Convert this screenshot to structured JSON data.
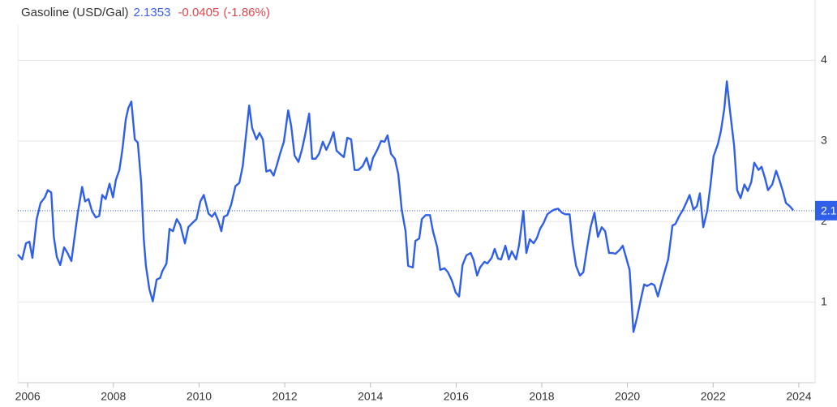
{
  "chart_data": {
    "type": "line",
    "title": "Gasoline (USD/Gal)",
    "last": 2.1353,
    "change": -0.0405,
    "change_percent": "(-1.86%)",
    "color": "#2f5fe8",
    "grid": true,
    "xlim": [
      2005.77,
      2024.38
    ],
    "xticks": [
      2006,
      2008,
      2010,
      2012,
      2014,
      2016,
      2018,
      2020,
      2022,
      2024
    ],
    "ylim": [
      0,
      4.75
    ],
    "yticks": [
      1,
      2,
      3,
      4
    ],
    "x": [
      2005.77,
      2005.87,
      2005.96,
      2006.04,
      2006.11,
      2006.21,
      2006.3,
      2006.4,
      2006.47,
      2006.55,
      2006.61,
      2006.68,
      2006.76,
      2006.85,
      2006.93,
      2007.02,
      2007.1,
      2007.17,
      2007.27,
      2007.34,
      2007.42,
      2007.5,
      2007.59,
      2007.67,
      2007.74,
      2007.82,
      2007.91,
      2007.99,
      2008.06,
      2008.14,
      2008.21,
      2008.29,
      2008.35,
      2008.42,
      2008.5,
      2008.57,
      2008.65,
      2008.71,
      2008.76,
      2008.84,
      2008.92,
      2009.01,
      2009.09,
      2009.14,
      2009.24,
      2009.31,
      2009.39,
      2009.48,
      2009.56,
      2009.67,
      2009.75,
      2009.84,
      2009.94,
      2010.03,
      2010.11,
      2010.22,
      2010.3,
      2010.37,
      2010.45,
      2010.52,
      2010.58,
      2010.66,
      2010.75,
      2010.85,
      2010.94,
      2011.02,
      2011.09,
      2011.17,
      2011.24,
      2011.34,
      2011.41,
      2011.49,
      2011.57,
      2011.66,
      2011.74,
      2011.81,
      2011.89,
      2011.98,
      2012.08,
      2012.15,
      2012.23,
      2012.32,
      2012.4,
      2012.47,
      2012.57,
      2012.64,
      2012.72,
      2012.8,
      2012.89,
      2012.97,
      2013.06,
      2013.14,
      2013.21,
      2013.29,
      2013.38,
      2013.46,
      2013.55,
      2013.63,
      2013.72,
      2013.82,
      2013.91,
      2013.99,
      2014.06,
      2014.16,
      2014.25,
      2014.33,
      2014.4,
      2014.48,
      2014.57,
      2014.65,
      2014.73,
      2014.82,
      2014.88,
      2014.99,
      2015.05,
      2015.14,
      2015.2,
      2015.29,
      2015.39,
      2015.46,
      2015.56,
      2015.63,
      2015.73,
      2015.81,
      2015.9,
      2015.99,
      2016.07,
      2016.15,
      2016.24,
      2016.34,
      2016.41,
      2016.49,
      2016.56,
      2016.66,
      2016.73,
      2016.83,
      2016.9,
      2016.98,
      2017.05,
      2017.15,
      2017.23,
      2017.3,
      2017.4,
      2017.47,
      2017.57,
      2017.64,
      2017.72,
      2017.81,
      2017.89,
      2017.96,
      2018.04,
      2018.13,
      2018.23,
      2018.3,
      2018.38,
      2018.47,
      2018.55,
      2018.65,
      2018.72,
      2018.8,
      2018.89,
      2018.97,
      2019.06,
      2019.14,
      2019.23,
      2019.31,
      2019.4,
      2019.48,
      2019.57,
      2019.65,
      2019.72,
      2019.82,
      2019.89,
      2019.97,
      2020.05,
      2020.14,
      2020.22,
      2020.31,
      2020.39,
      2020.46,
      2020.56,
      2020.63,
      2020.71,
      2020.8,
      2020.88,
      2020.95,
      2021.05,
      2021.12,
      2021.2,
      2021.3,
      2021.37,
      2021.45,
      2021.54,
      2021.62,
      2021.69,
      2021.77,
      2021.86,
      2021.94,
      2022.01,
      2022.11,
      2022.18,
      2022.26,
      2022.32,
      2022.39,
      2022.49,
      2022.56,
      2022.64,
      2022.73,
      2022.81,
      2022.89,
      2022.96,
      2023.06,
      2023.13,
      2023.21,
      2023.28,
      2023.38,
      2023.47,
      2023.55,
      2023.62,
      2023.7,
      2023.79,
      2023.87
    ],
    "values": [
      1.59,
      1.53,
      1.73,
      1.75,
      1.55,
      2.03,
      2.23,
      2.3,
      2.39,
      2.36,
      1.81,
      1.56,
      1.46,
      1.68,
      1.61,
      1.51,
      1.83,
      2.11,
      2.43,
      2.25,
      2.28,
      2.13,
      2.05,
      2.07,
      2.33,
      2.28,
      2.47,
      2.3,
      2.52,
      2.64,
      2.89,
      3.27,
      3.41,
      3.49,
      3.02,
      2.98,
      2.48,
      1.78,
      1.45,
      1.16,
      1.01,
      1.28,
      1.3,
      1.38,
      1.48,
      1.91,
      1.88,
      2.03,
      1.96,
      1.73,
      1.93,
      1.98,
      2.03,
      2.25,
      2.33,
      2.1,
      2.06,
      2.11,
      2.01,
      1.88,
      2.06,
      2.08,
      2.21,
      2.44,
      2.48,
      2.69,
      3.04,
      3.44,
      3.16,
      3.02,
      3.1,
      3.02,
      2.62,
      2.64,
      2.57,
      2.69,
      2.84,
      2.99,
      3.38,
      3.19,
      2.82,
      2.74,
      2.89,
      3.06,
      3.34,
      2.78,
      2.78,
      2.84,
      2.99,
      2.89,
      2.99,
      3.11,
      2.88,
      2.84,
      2.8,
      3.04,
      3.02,
      2.64,
      2.64,
      2.69,
      2.79,
      2.64,
      2.79,
      2.89,
      3.0,
      2.99,
      3.07,
      2.84,
      2.78,
      2.59,
      2.15,
      1.88,
      1.45,
      1.43,
      1.76,
      1.79,
      2.03,
      2.08,
      2.08,
      1.88,
      1.68,
      1.4,
      1.42,
      1.37,
      1.27,
      1.12,
      1.07,
      1.46,
      1.58,
      1.61,
      1.52,
      1.33,
      1.43,
      1.5,
      1.48,
      1.55,
      1.66,
      1.54,
      1.53,
      1.7,
      1.53,
      1.63,
      1.53,
      1.71,
      2.13,
      1.61,
      1.78,
      1.73,
      1.8,
      1.91,
      1.98,
      2.09,
      2.13,
      2.15,
      2.16,
      2.11,
      2.09,
      2.09,
      1.73,
      1.45,
      1.33,
      1.37,
      1.68,
      1.93,
      2.11,
      1.81,
      1.93,
      1.88,
      1.61,
      1.61,
      1.6,
      1.65,
      1.7,
      1.55,
      1.4,
      0.63,
      0.8,
      1.03,
      1.22,
      1.2,
      1.23,
      1.21,
      1.07,
      1.25,
      1.4,
      1.53,
      1.95,
      1.97,
      2.06,
      2.15,
      2.23,
      2.33,
      2.15,
      2.19,
      2.35,
      1.93,
      2.13,
      2.46,
      2.81,
      2.96,
      3.12,
      3.4,
      3.74,
      3.39,
      2.94,
      2.39,
      2.29,
      2.46,
      2.38,
      2.49,
      2.73,
      2.64,
      2.68,
      2.54,
      2.39,
      2.46,
      2.63,
      2.51,
      2.39,
      2.23,
      2.19,
      2.14
    ]
  }
}
